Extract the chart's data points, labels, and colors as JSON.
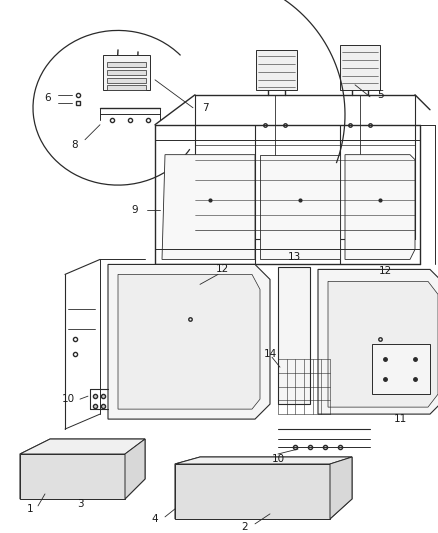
{
  "bg_color": "#ffffff",
  "fig_width": 4.38,
  "fig_height": 5.33,
  "dpi": 100,
  "line_color": "#2a2a2a",
  "label_fontsize": 7.5,
  "label_color": "#1a1a1a"
}
